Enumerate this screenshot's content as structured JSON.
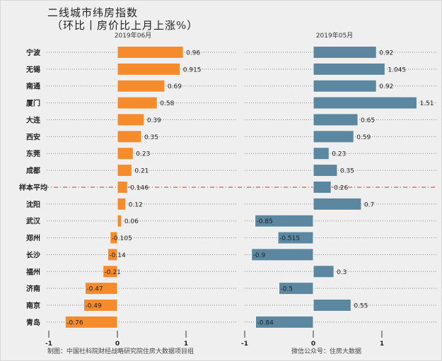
{
  "chart_data": {
    "type": "bar",
    "orientation": "horizontal",
    "title": "二线城市纬房指数",
    "subtitle": "（环比丨房价比上月上涨%）",
    "categories": [
      "宁波",
      "无锡",
      "南通",
      "厦门",
      "大连",
      "西安",
      "东莞",
      "成都",
      "样本平均",
      "沈阳",
      "武汉",
      "郑州",
      "长沙",
      "福州",
      "济南",
      "南京",
      "青岛"
    ],
    "series": [
      {
        "name": "2019年06月",
        "color": "#f68b2c",
        "values": [
          0.96,
          0.915,
          0.69,
          0.58,
          0.39,
          0.35,
          0.23,
          0.21,
          0.146,
          0.12,
          0.06,
          -0.105,
          -0.14,
          -0.21,
          -0.47,
          -0.49,
          -0.76
        ]
      },
      {
        "name": "2019年05月",
        "color": "#5b87a1",
        "values": [
          0.92,
          1.045,
          0.92,
          1.51,
          0.65,
          0.59,
          0.23,
          0.35,
          0.26,
          0.7,
          -0.85,
          -0.515,
          -0.9,
          0.3,
          -0.5,
          0.55,
          -0.84
        ]
      }
    ],
    "xticks": [
      -1,
      0,
      1
    ],
    "xlim": [
      -1,
      1.6
    ],
    "reference_row": "样本平均",
    "reference_line_color": "#c0392b",
    "grid": "dotted row lines"
  },
  "footer": {
    "left": "制图：中国社科院财经战略研究院住房大数据项目组",
    "right": "微信公众号：住房大数据"
  }
}
